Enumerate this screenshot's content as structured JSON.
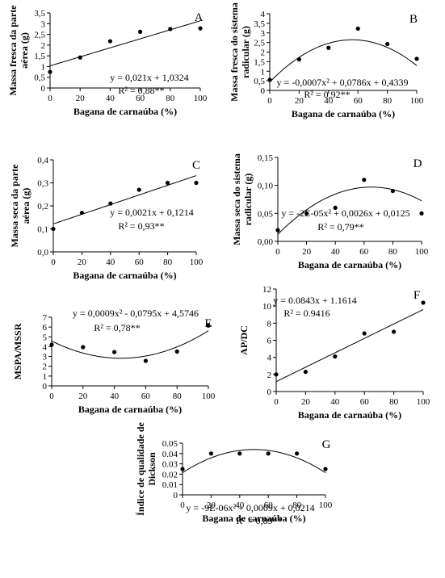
{
  "chart_data": [
    {
      "id": "A",
      "type": "scatter",
      "panel_label": "A",
      "xlabel": "Bagana de carnaúba (%)",
      "ylabel": "Massa fresca da parte aérea (g)",
      "xlim": [
        0,
        100
      ],
      "ylim": [
        0,
        3.5
      ],
      "xticks": [
        0,
        20,
        40,
        60,
        80,
        100
      ],
      "yticks": [
        0,
        0.5,
        1,
        1.5,
        2,
        2.5,
        3,
        3.5
      ],
      "ytick_labels": [
        "0",
        "0,5",
        "1",
        "1,5",
        "2",
        "2,5",
        "3",
        "3,5"
      ],
      "x": [
        0,
        20,
        40,
        60,
        80,
        100
      ],
      "y": [
        0.75,
        1.42,
        2.18,
        2.62,
        2.75,
        2.78
      ],
      "fit": {
        "kind": "linear",
        "coef": [
          1.0324,
          0.021
        ]
      },
      "equation": "y = 0,021x + 1,0324",
      "r2": "R² = 0,88**"
    },
    {
      "id": "B",
      "type": "scatter",
      "panel_label": "B",
      "xlabel": "Bagana de carnaúba (%)",
      "ylabel": "Massa fresca do sistema radicular (g)",
      "xlim": [
        0,
        100
      ],
      "ylim": [
        0,
        4
      ],
      "xticks": [
        0,
        20,
        40,
        60,
        80,
        100
      ],
      "yticks": [
        0,
        0.5,
        1,
        1.5,
        2,
        2.5,
        3,
        3.5,
        4
      ],
      "ytick_labels": [
        "0",
        "0,5",
        "1",
        "1,5",
        "2",
        "2,5",
        "3",
        "3,5",
        "4"
      ],
      "x": [
        0,
        20,
        40,
        60,
        80,
        100
      ],
      "y": [
        0.55,
        1.62,
        2.22,
        3.22,
        2.42,
        1.65
      ],
      "fit": {
        "kind": "quadratic",
        "coef": [
          0.4339,
          0.0786,
          -0.0007
        ]
      },
      "equation": "y = -0,0007x² + 0,0786x + 0,4339",
      "r2": "R² = 0,92**"
    },
    {
      "id": "C",
      "type": "scatter",
      "panel_label": "C",
      "xlabel": "Bagana de carnaúba (%)",
      "ylabel": "Massa seca da parte aérea (g)",
      "xlim": [
        0,
        100
      ],
      "ylim": [
        0,
        0.4
      ],
      "xticks": [
        0,
        20,
        40,
        60,
        80,
        100
      ],
      "yticks": [
        0,
        0.1,
        0.2,
        0.3,
        0.4
      ],
      "ytick_labels": [
        "0,0",
        "0,1",
        "0,2",
        "0,3",
        "0,4"
      ],
      "x": [
        0,
        20,
        40,
        60,
        80,
        100
      ],
      "y": [
        0.1,
        0.17,
        0.21,
        0.27,
        0.3,
        0.3
      ],
      "fit": {
        "kind": "linear",
        "coef": [
          0.1214,
          0.0021
        ]
      },
      "equation": "y = 0,0021x + 0,1214",
      "r2": "R² = 0,93**"
    },
    {
      "id": "D",
      "type": "scatter",
      "panel_label": "D",
      "xlabel": "Bagana de carnaúba (%)",
      "ylabel": "Massa seca do sistema radicular (g)",
      "xlim": [
        0,
        100
      ],
      "ylim": [
        0,
        0.15
      ],
      "xticks": [
        0,
        20,
        40,
        60,
        80,
        100
      ],
      "yticks": [
        0,
        0.05,
        0.1,
        0.15
      ],
      "ytick_labels": [
        "0,00",
        "0,05",
        "0,10",
        "0,15"
      ],
      "x": [
        0,
        20,
        40,
        60,
        80,
        100
      ],
      "y": [
        0.02,
        0.05,
        0.06,
        0.11,
        0.09,
        0.05
      ],
      "fit": {
        "kind": "quadratic",
        "coef": [
          0.0125,
          0.0026,
          -2e-05
        ]
      },
      "equation": "y = -2E-05x² + 0,0026x + 0,0125",
      "r2": "R² = 0,79**"
    },
    {
      "id": "E",
      "type": "scatter",
      "panel_label": "E",
      "xlabel": "Bagana de carnaúba (%)",
      "ylabel": "MSPA/MSSR",
      "xlim": [
        0,
        100
      ],
      "ylim": [
        0,
        7
      ],
      "xticks": [
        0,
        20,
        40,
        60,
        80,
        100
      ],
      "yticks": [
        0,
        1,
        2,
        3,
        4,
        5,
        6,
        7
      ],
      "ytick_labels": [
        "0",
        "1",
        "2",
        "3",
        "4",
        "5",
        "6",
        "7"
      ],
      "x": [
        0,
        20,
        40,
        60,
        80,
        100
      ],
      "y": [
        4.2,
        3.95,
        3.45,
        2.55,
        3.5,
        6.15
      ],
      "fit": {
        "kind": "quadratic",
        "coef": [
          4.5746,
          -0.0795,
          0.0009
        ]
      },
      "equation": "y = 0,0009x² - 0,0795x + 4,5746",
      "r2": "R² = 0,78**"
    },
    {
      "id": "F",
      "type": "scatter",
      "panel_label": "F",
      "xlabel": "Bagana de carnaúba (%)",
      "ylabel": "AP/DC",
      "xlim": [
        0,
        100
      ],
      "ylim": [
        0,
        12
      ],
      "xticks": [
        0,
        20,
        40,
        60,
        80,
        100
      ],
      "yticks": [
        0,
        2,
        4,
        6,
        8,
        10,
        12
      ],
      "ytick_labels": [
        "0",
        "2",
        "4",
        "6",
        "8",
        "10",
        "12"
      ],
      "x": [
        0,
        20,
        40,
        60,
        80,
        100
      ],
      "y": [
        2.0,
        2.3,
        4.1,
        6.8,
        7.0,
        10.4
      ],
      "fit": {
        "kind": "linear",
        "coef": [
          1.1614,
          0.0843
        ]
      },
      "equation": "y = 0.0843x + 1.1614",
      "r2": "R² = 0.9416"
    },
    {
      "id": "G",
      "type": "scatter",
      "panel_label": "G",
      "xlabel": "Bagana de carnaúba (%)",
      "ylabel": "Índice de qualidade de Dickson",
      "xlim": [
        0,
        100
      ],
      "ylim": [
        0,
        0.05
      ],
      "xticks": [
        0,
        20,
        40,
        60,
        80,
        100
      ],
      "yticks": [
        0,
        0.01,
        0.02,
        0.03,
        0.04,
        0.05
      ],
      "ytick_labels": [
        "0",
        "0.01",
        "0.02",
        "0.03",
        "0.04",
        "0.05"
      ],
      "x": [
        0,
        20,
        40,
        60,
        80,
        100
      ],
      "y": [
        0.025,
        0.04,
        0.04,
        0.04,
        0.04,
        0.025
      ],
      "fit": {
        "kind": "quadratic",
        "coef": [
          0.0214,
          0.0009,
          -9e-06
        ]
      },
      "equation": "y = -9E-06x² + 0,0009x + 0,0214",
      "r2": "R² = 0,89**"
    }
  ]
}
